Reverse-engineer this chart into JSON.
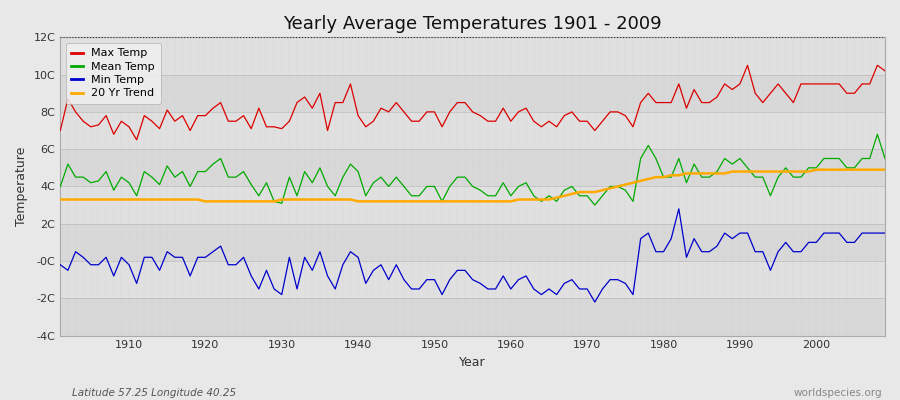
{
  "title": "Yearly Average Temperatures 1901 - 2009",
  "xlabel": "Year",
  "ylabel": "Temperature",
  "subtitle_left": "Latitude 57.25 Longitude 40.25",
  "subtitle_right": "worldspecies.org",
  "years": [
    1901,
    1902,
    1903,
    1904,
    1905,
    1906,
    1907,
    1908,
    1909,
    1910,
    1911,
    1912,
    1913,
    1914,
    1915,
    1916,
    1917,
    1918,
    1919,
    1920,
    1921,
    1922,
    1923,
    1924,
    1925,
    1926,
    1927,
    1928,
    1929,
    1930,
    1931,
    1932,
    1933,
    1934,
    1935,
    1936,
    1937,
    1938,
    1939,
    1940,
    1941,
    1942,
    1943,
    1944,
    1945,
    1946,
    1947,
    1948,
    1949,
    1950,
    1951,
    1952,
    1953,
    1954,
    1955,
    1956,
    1957,
    1958,
    1959,
    1960,
    1961,
    1962,
    1963,
    1964,
    1965,
    1966,
    1967,
    1968,
    1969,
    1970,
    1971,
    1972,
    1973,
    1974,
    1975,
    1976,
    1977,
    1978,
    1979,
    1980,
    1981,
    1982,
    1983,
    1984,
    1985,
    1986,
    1987,
    1988,
    1989,
    1990,
    1991,
    1992,
    1993,
    1994,
    1995,
    1996,
    1997,
    1998,
    1999,
    2000,
    2001,
    2002,
    2003,
    2004,
    2005,
    2006,
    2007,
    2008,
    2009
  ],
  "max_temp": [
    7.0,
    8.7,
    8.0,
    7.5,
    7.2,
    7.3,
    7.8,
    6.8,
    7.5,
    7.2,
    6.5,
    7.8,
    7.5,
    7.1,
    8.1,
    7.5,
    7.8,
    7.0,
    7.8,
    7.8,
    8.2,
    8.5,
    7.5,
    7.5,
    7.8,
    7.1,
    8.2,
    7.2,
    7.2,
    7.1,
    7.5,
    8.5,
    8.8,
    8.2,
    9.0,
    7.0,
    8.5,
    8.5,
    9.5,
    7.8,
    7.2,
    7.5,
    8.2,
    8.0,
    8.5,
    8.0,
    7.5,
    7.5,
    8.0,
    8.0,
    7.2,
    8.0,
    8.5,
    8.5,
    8.0,
    7.8,
    7.5,
    7.5,
    8.2,
    7.5,
    8.0,
    8.2,
    7.5,
    7.2,
    7.5,
    7.2,
    7.8,
    8.0,
    7.5,
    7.5,
    7.0,
    7.5,
    8.0,
    8.0,
    7.8,
    7.2,
    8.5,
    9.0,
    8.5,
    8.5,
    8.5,
    9.5,
    8.2,
    9.2,
    8.5,
    8.5,
    8.8,
    9.5,
    9.2,
    9.5,
    10.5,
    9.0,
    8.5,
    9.0,
    9.5,
    9.0,
    8.5,
    9.5,
    9.5,
    9.5,
    9.5,
    9.5,
    9.5,
    9.0,
    9.0,
    9.5,
    9.5,
    10.5,
    10.2
  ],
  "mean_temp": [
    4.0,
    5.2,
    4.5,
    4.5,
    4.2,
    4.3,
    4.8,
    3.8,
    4.5,
    4.2,
    3.5,
    4.8,
    4.5,
    4.1,
    5.1,
    4.5,
    4.8,
    4.0,
    4.8,
    4.8,
    5.2,
    5.5,
    4.5,
    4.5,
    4.8,
    4.1,
    3.5,
    4.2,
    3.2,
    3.1,
    4.5,
    3.5,
    4.8,
    4.2,
    5.0,
    4.0,
    3.5,
    4.5,
    5.2,
    4.8,
    3.5,
    4.2,
    4.5,
    4.0,
    4.5,
    4.0,
    3.5,
    3.5,
    4.0,
    4.0,
    3.2,
    4.0,
    4.5,
    4.5,
    4.0,
    3.8,
    3.5,
    3.5,
    4.2,
    3.5,
    4.0,
    4.2,
    3.5,
    3.2,
    3.5,
    3.2,
    3.8,
    4.0,
    3.5,
    3.5,
    3.0,
    3.5,
    4.0,
    4.0,
    3.8,
    3.2,
    5.5,
    6.2,
    5.5,
    4.5,
    4.5,
    5.5,
    4.2,
    5.2,
    4.5,
    4.5,
    4.8,
    5.5,
    5.2,
    5.5,
    5.0,
    4.5,
    4.5,
    3.5,
    4.5,
    5.0,
    4.5,
    4.5,
    5.0,
    5.0,
    5.5,
    5.5,
    5.5,
    5.0,
    5.0,
    5.5,
    5.5,
    6.8,
    5.5
  ],
  "min_temp": [
    -0.2,
    -0.5,
    0.5,
    0.2,
    -0.2,
    -0.2,
    0.2,
    -0.8,
    0.2,
    -0.2,
    -1.2,
    0.2,
    0.2,
    -0.5,
    0.5,
    0.2,
    0.2,
    -0.8,
    0.2,
    0.2,
    0.5,
    0.8,
    -0.2,
    -0.2,
    0.2,
    -0.8,
    -1.5,
    -0.5,
    -1.5,
    -1.8,
    0.2,
    -1.5,
    0.2,
    -0.5,
    0.5,
    -0.8,
    -1.5,
    -0.2,
    0.5,
    0.2,
    -1.2,
    -0.5,
    -0.2,
    -1.0,
    -0.2,
    -1.0,
    -1.5,
    -1.5,
    -1.0,
    -1.0,
    -1.8,
    -1.0,
    -0.5,
    -0.5,
    -1.0,
    -1.2,
    -1.5,
    -1.5,
    -0.8,
    -1.5,
    -1.0,
    -0.8,
    -1.5,
    -1.8,
    -1.5,
    -1.8,
    -1.2,
    -1.0,
    -1.5,
    -1.5,
    -2.2,
    -1.5,
    -1.0,
    -1.0,
    -1.2,
    -1.8,
    1.2,
    1.5,
    0.5,
    0.5,
    1.2,
    2.8,
    0.2,
    1.2,
    0.5,
    0.5,
    0.8,
    1.5,
    1.2,
    1.5,
    1.5,
    0.5,
    0.5,
    -0.5,
    0.5,
    1.0,
    0.5,
    0.5,
    1.0,
    1.0,
    1.5,
    1.5,
    1.5,
    1.0,
    1.0,
    1.5,
    1.5,
    1.5,
    1.5
  ],
  "trend_20yr": [
    3.3,
    3.3,
    3.3,
    3.3,
    3.3,
    3.3,
    3.3,
    3.3,
    3.3,
    3.3,
    3.3,
    3.3,
    3.3,
    3.3,
    3.3,
    3.3,
    3.3,
    3.3,
    3.3,
    3.2,
    3.2,
    3.2,
    3.2,
    3.2,
    3.2,
    3.2,
    3.2,
    3.2,
    3.2,
    3.3,
    3.3,
    3.3,
    3.3,
    3.3,
    3.3,
    3.3,
    3.3,
    3.3,
    3.3,
    3.2,
    3.2,
    3.2,
    3.2,
    3.2,
    3.2,
    3.2,
    3.2,
    3.2,
    3.2,
    3.2,
    3.2,
    3.2,
    3.2,
    3.2,
    3.2,
    3.2,
    3.2,
    3.2,
    3.2,
    3.2,
    3.3,
    3.3,
    3.3,
    3.3,
    3.3,
    3.4,
    3.5,
    3.6,
    3.7,
    3.7,
    3.7,
    3.8,
    3.9,
    4.0,
    4.1,
    4.2,
    4.3,
    4.4,
    4.5,
    4.5,
    4.6,
    4.6,
    4.7,
    4.7,
    4.7,
    4.7,
    4.7,
    4.7,
    4.8,
    4.8,
    4.8,
    4.8,
    4.8,
    4.8,
    4.8,
    4.8,
    4.8,
    4.8,
    4.8,
    4.9,
    4.9,
    4.9,
    4.9,
    4.9,
    4.9,
    4.9,
    4.9,
    4.9,
    4.9
  ],
  "max_color": "#dd0000",
  "mean_color": "#00aa00",
  "min_color": "#0000cc",
  "trend_color": "#ffaa00",
  "bg_color": "#e8e8e8",
  "plot_bg_color_light": "#e0e0e0",
  "plot_bg_color_dark": "#d0d0d0",
  "grid_color": "#ffffff",
  "ylim": [
    -4,
    12
  ],
  "yticks": [
    -4,
    -2,
    0,
    2,
    4,
    6,
    8,
    10,
    12
  ],
  "ytick_labels": [
    "-4C",
    "-2C",
    "-0C",
    "2C",
    "4C",
    "6C",
    "8C",
    "10C",
    "12C"
  ]
}
